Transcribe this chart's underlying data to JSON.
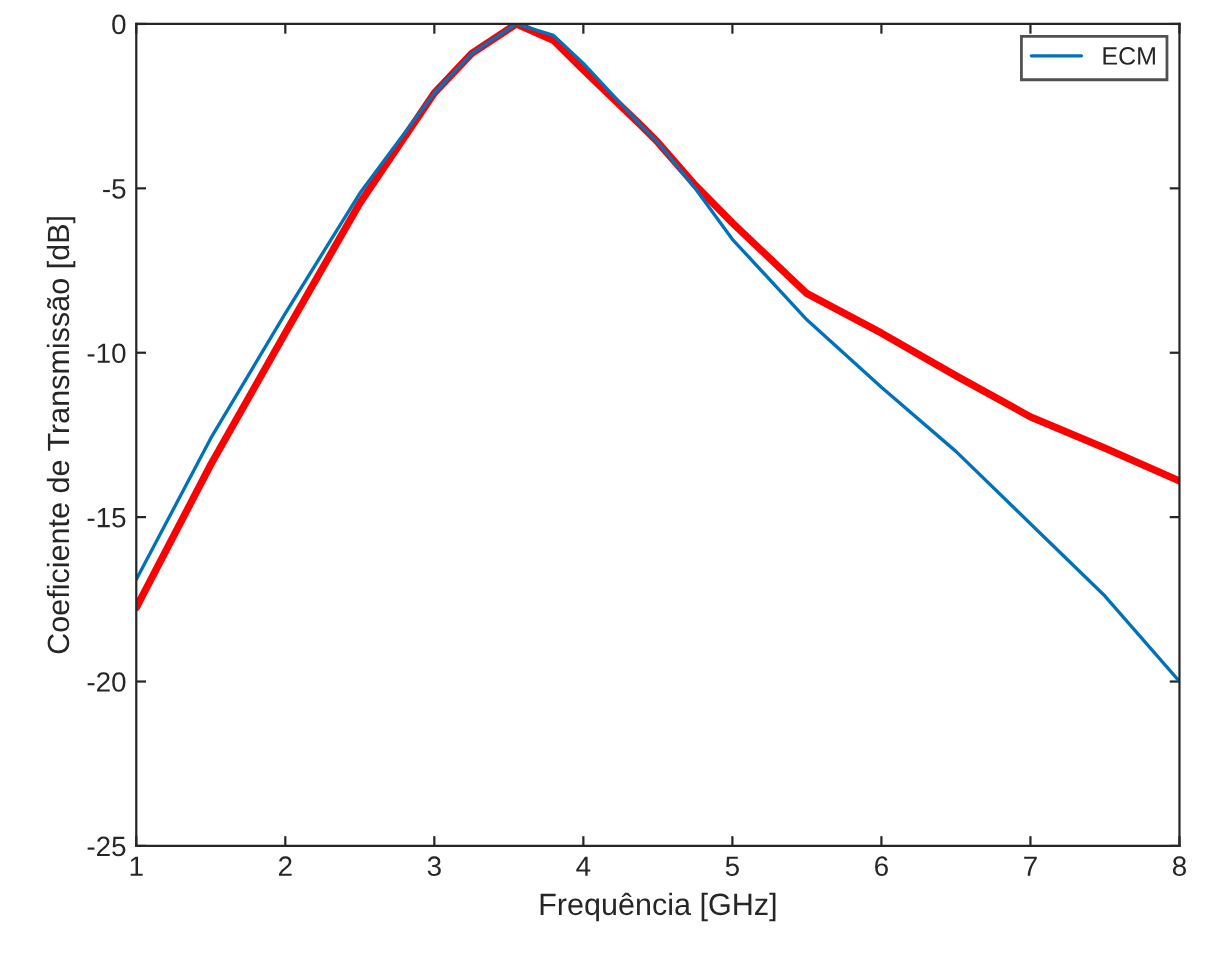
{
  "chart_data": {
    "type": "line",
    "xlabel": "Frequência [GHz]",
    "ylabel": "Coeficiente de Transmissão [dB]",
    "xlim": [
      1,
      8
    ],
    "ylim": [
      -25,
      0
    ],
    "xticks": [
      1,
      2,
      3,
      4,
      5,
      6,
      7,
      8
    ],
    "yticks": [
      -25,
      -20,
      -15,
      -10,
      -5,
      0
    ],
    "grid": false,
    "legend": "top right",
    "marker": "none",
    "line_style": "solid",
    "x": [
      1,
      1.5,
      2,
      2.5,
      3,
      3.25,
      3.55,
      3.8,
      4,
      4.39,
      4.5,
      4.75,
      5,
      5.5,
      6,
      6.5,
      7,
      7.5,
      8
    ],
    "series": [
      {
        "color": "#ff0000",
        "values": [
          -17.75,
          -13.4,
          -9.4,
          -5.45,
          -2.1,
          -0.9,
          0,
          -0.5,
          -1.4,
          -3.1,
          -3.6,
          -4.9,
          -6.05,
          -8.2,
          -9.4,
          -10.7,
          -11.95,
          -12.9,
          -13.9
        ]
      },
      {
        "name": "ECM",
        "color": "#0072bd",
        "values": [
          -16.9,
          -12.6,
          -8.8,
          -5.15,
          -2.1,
          -0.9,
          0,
          -0.35,
          -1.2,
          -3.1,
          -3.6,
          -5.0,
          -6.55,
          -9.0,
          -11.05,
          -13.0,
          -15.2,
          -17.4,
          -20.0
        ]
      }
    ]
  }
}
